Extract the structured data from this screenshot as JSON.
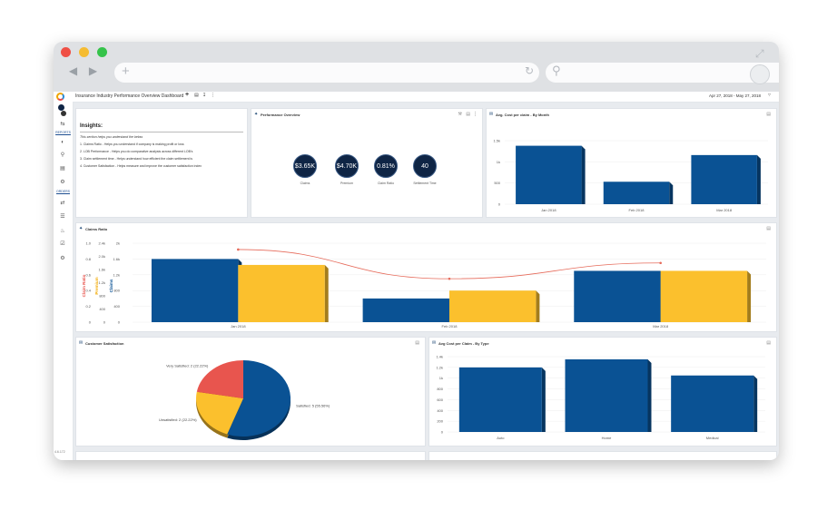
{
  "dashboard": {
    "title": "Insurance Industry Performance Overview Dashboard",
    "date_range": "Apr 27, 2018 - May 27, 2018",
    "version": "4.6.172"
  },
  "sidebar": {
    "reports_label": "REPORTS",
    "orders_label": "ORDERS"
  },
  "insights": {
    "heading": "Insights:",
    "intro": "This section helps you understand the below",
    "items": [
      "1. Claims Ratio - Helps you understand if company is making profit or loss",
      "2. LOB Performance - Helps you do comparative analysis across different LOB's",
      "3. Claim settlement time - Helps understand how efficient the claim settlement is",
      "4. Customer Satisfaction - Helps measure and improve the customer satisfaction index"
    ]
  },
  "performance": {
    "title": "Performance Overview",
    "kpis": [
      {
        "value": "$3.65K",
        "label": "Claims"
      },
      {
        "value": "$4.70K",
        "label": "Premium"
      },
      {
        "value": "0.81%",
        "label": "Claim Ratio"
      },
      {
        "value": "40",
        "label": "Settlement Time"
      }
    ]
  },
  "colors": {
    "blue": "#0a5294",
    "yellow": "#fbc02d",
    "red": "#e8554e",
    "line": "#e66b5b"
  },
  "chart_data": [
    {
      "type": "bar",
      "title": "Avg. Cost per claim - By Month",
      "categories": [
        "Jan 2018",
        "Feb 2018",
        "Mar 2018"
      ],
      "values": [
        1380,
        530,
        1160
      ],
      "yticks": [
        "0",
        "500",
        "1k",
        "1.5k"
      ],
      "ylim": [
        0,
        1800
      ]
    },
    {
      "type": "bar",
      "title": "Claims Ratio",
      "categories": [
        "Jan 2018",
        "Feb 2018",
        "Mar 2018"
      ],
      "series": [
        {
          "name": "Claims",
          "values": [
            1.6,
            0.6,
            1.3
          ]
        },
        {
          "name": "Premium",
          "values": [
            1.45,
            0.8,
            1.3
          ]
        },
        {
          "name": "Claim Ratio",
          "values": [
            0.92,
            0.55,
            0.75
          ]
        }
      ],
      "axis_claim_ratio_ticks": [
        "0",
        "0.2",
        "0.4",
        "0.6",
        "0.8",
        "1.0"
      ],
      "axis_premium_ticks": [
        "0",
        "400",
        "800",
        "1.2k",
        "1.6k",
        "2.0k",
        "2.4k"
      ],
      "axis_claims_ticks": [
        "0",
        "400",
        "800",
        "1.2k",
        "1.6k",
        "2k"
      ],
      "ylabel_left": "Claim Ratio",
      "ylabel_mid": "Premium",
      "ylabel_right": "Claims"
    },
    {
      "type": "pie",
      "title": "Customer Satisfaction",
      "slices": [
        {
          "label": "Satisfied: 5 (55.56%)",
          "value": 55.56
        },
        {
          "label": "Unsatisfied: 2 (22.22%)",
          "value": 22.22
        },
        {
          "label": "Very Satisfied: 2 (22.22%)",
          "value": 22.22
        }
      ]
    },
    {
      "type": "bar",
      "title": "Avg Cost per Claim - By Type",
      "categories": [
        "Auto",
        "Home",
        "Medical"
      ],
      "values": [
        1200,
        1350,
        1050
      ],
      "yticks": [
        "0",
        "200",
        "400",
        "600",
        "800",
        "1k",
        "1.2k",
        "1.4k"
      ],
      "ylim": [
        0,
        1400
      ]
    }
  ]
}
